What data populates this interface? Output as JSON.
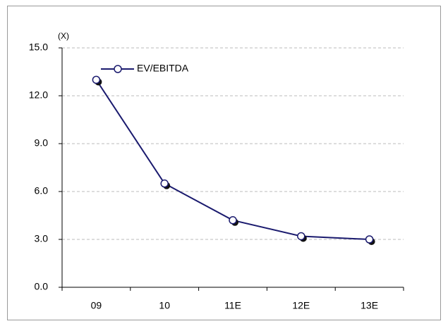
{
  "chart_data": {
    "type": "line",
    "unit_label": "(X)",
    "categories": [
      "09",
      "10",
      "11E",
      "12E",
      "13E"
    ],
    "series": [
      {
        "name": "EV/EBITDA",
        "color": "#1a1a6e",
        "values": [
          13.0,
          6.5,
          4.2,
          3.2,
          3.0
        ]
      }
    ],
    "ylim": [
      0,
      15
    ],
    "yticks": [
      {
        "value": 0,
        "label": "0.0"
      },
      {
        "value": 3,
        "label": "3.0"
      },
      {
        "value": 6,
        "label": "6.0"
      },
      {
        "value": 9,
        "label": "9.0"
      },
      {
        "value": 12,
        "label": "12.0"
      },
      {
        "value": 15,
        "label": "15.0"
      }
    ],
    "grid": true,
    "legend": "top-left"
  }
}
